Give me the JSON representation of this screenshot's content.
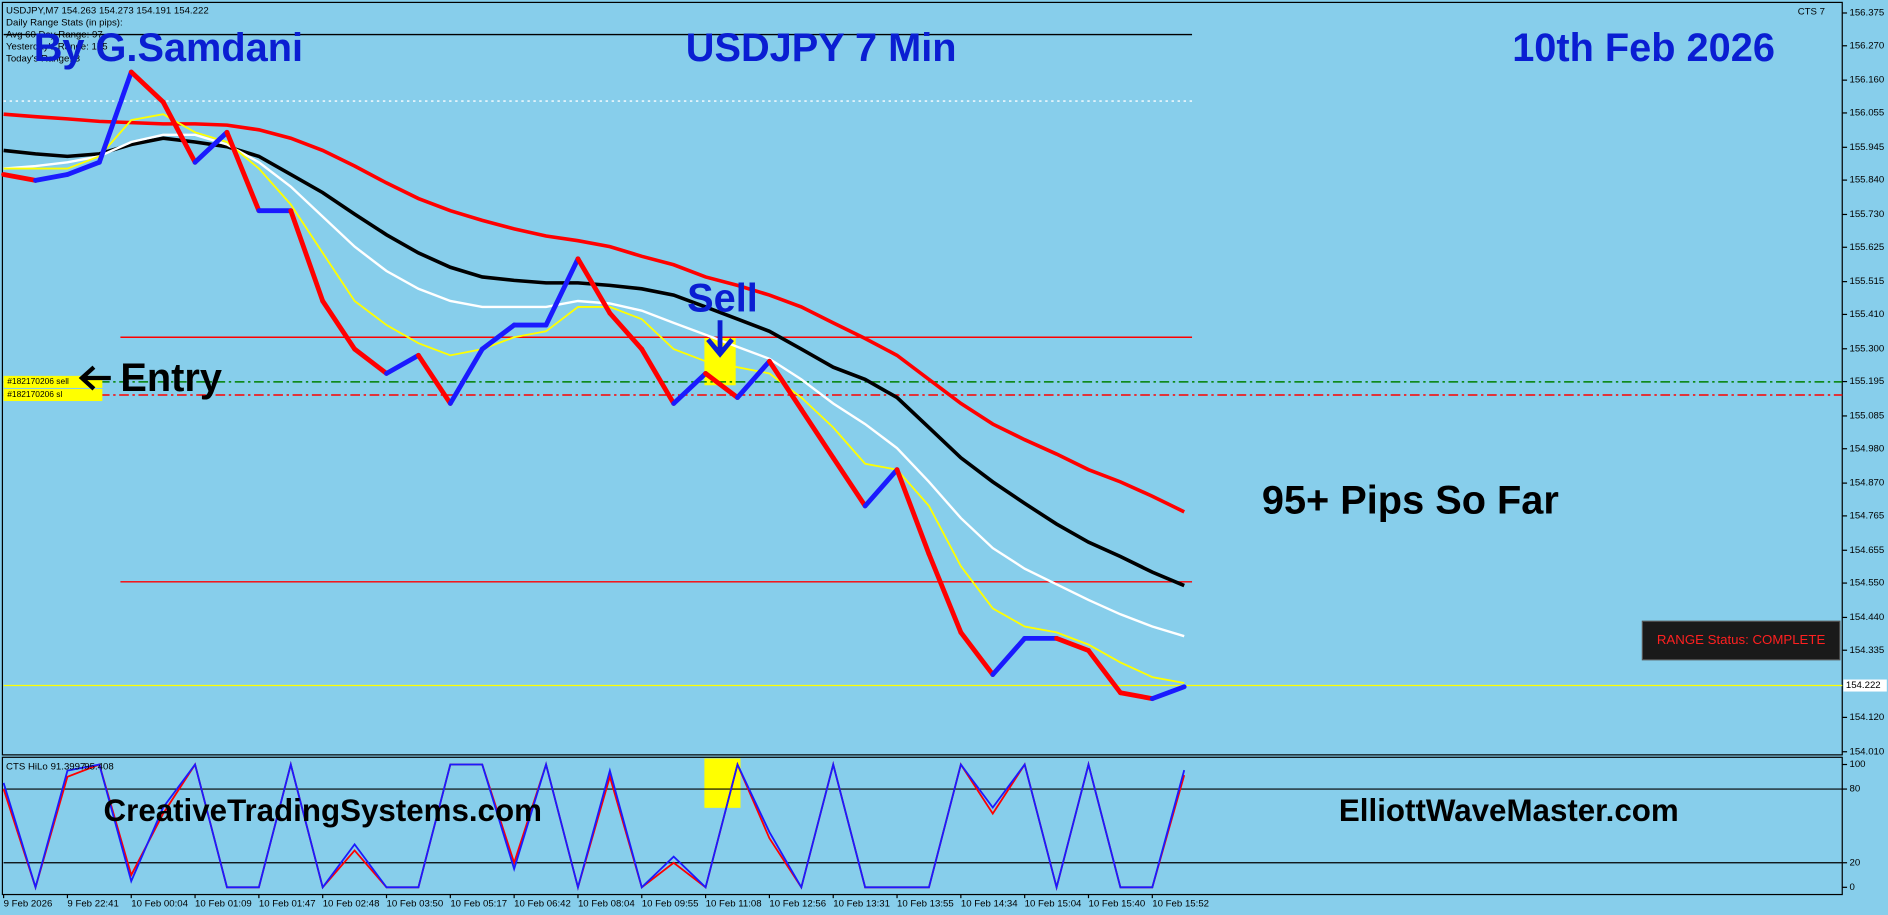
{
  "header": {
    "symbol_line": "USDJPY,M7  154.263 154.273 154.191 154.222",
    "stats_title": "Daily Range Stats (in pips):",
    "stats": [
      "Avg 60 Day Range: 97",
      "Yesterday's Range: 175",
      "Today's Range: 3"
    ],
    "indicator_tag": "CTS 7"
  },
  "annotations": {
    "author": "By G.Samdani",
    "date": "10th Feb 2026",
    "signal": "Sell",
    "entry": "Entry",
    "result": "95+ Pips So Far",
    "range_status": "RANGE Status: COMPLETE",
    "site_left": "CreativeTradingSystems.com",
    "site_right": "ElliottWaveMaster.com"
  },
  "chart_data": [
    {
      "type": "line",
      "title": "USDJPY 7 Min",
      "categories": [
        "9 Feb 2026",
        null,
        "9 Feb 22:41",
        null,
        "10 Feb 00:04",
        null,
        "10 Feb 01:09",
        null,
        "10 Feb 01:47",
        null,
        "10 Feb 02:48",
        null,
        "10 Feb 03:50",
        null,
        "10 Feb 05:17",
        null,
        "10 Feb 06:42",
        null,
        "10 Feb 08:04",
        null,
        "10 Feb 09:55",
        null,
        "10 Feb 11:08",
        null,
        "10 Feb 12:56",
        null,
        "10 Feb 13:31",
        null,
        "10 Feb 13:55",
        null,
        "10 Feb 14:34",
        null,
        "10 Feb 15:04",
        null,
        "10 Feb 15:40",
        null,
        "10 Feb 15:52",
        null
      ],
      "series": [
        {
          "color": "#ff0000",
          "width": 3,
          "values": [
            156.051,
            156.043,
            156.036,
            156.028,
            156.024,
            156.02,
            156.02,
            156.016,
            156.001,
            155.974,
            155.935,
            155.885,
            155.831,
            155.781,
            155.742,
            155.711,
            155.684,
            155.661,
            155.646,
            155.627,
            155.596,
            155.569,
            155.53,
            155.503,
            155.472,
            155.434,
            155.383,
            155.333,
            155.279,
            155.202,
            155.125,
            155.059,
            155.009,
            154.963,
            154.913,
            154.874,
            154.828,
            154.778
          ]
        },
        {
          "color": "#000000",
          "width": 3,
          "values": [
            155.935,
            155.924,
            155.916,
            155.924,
            155.954,
            155.974,
            155.962,
            155.947,
            155.916,
            155.858,
            155.8,
            155.731,
            155.665,
            155.607,
            155.561,
            155.53,
            155.519,
            155.511,
            155.511,
            155.503,
            155.492,
            155.472,
            155.434,
            155.395,
            155.356,
            155.299,
            155.241,
            155.202,
            155.144,
            155.048,
            154.951,
            154.874,
            154.805,
            154.739,
            154.681,
            154.635,
            154.585,
            154.542
          ]
        },
        {
          "color": "#ffffff",
          "width": 2,
          "values": [
            155.877,
            155.885,
            155.897,
            155.916,
            155.962,
            155.985,
            155.985,
            155.954,
            155.897,
            155.819,
            155.723,
            155.627,
            155.549,
            155.492,
            155.453,
            155.434,
            155.434,
            155.434,
            155.453,
            155.445,
            155.422,
            155.383,
            155.345,
            155.306,
            155.268,
            155.202,
            155.125,
            155.059,
            154.982,
            154.874,
            154.758,
            154.662,
            154.596,
            154.546,
            154.496,
            154.45,
            154.411,
            154.38
          ]
        },
        {
          "color": "#ffff00",
          "width": 1.5,
          "values": [
            155.877,
            155.877,
            155.877,
            155.916,
            156.032,
            156.051,
            155.993,
            155.962,
            155.877,
            155.762,
            155.607,
            155.453,
            155.376,
            155.318,
            155.279,
            155.299,
            155.337,
            155.356,
            155.434,
            155.434,
            155.395,
            155.299,
            155.26,
            155.241,
            155.221,
            155.144,
            155.048,
            154.932,
            154.913,
            154.797,
            154.604,
            154.469,
            154.411,
            154.392,
            154.353,
            154.296,
            154.249,
            154.23
          ]
        },
        {
          "up_color": "#1a1aff",
          "down_color": "#ff0000",
          "width": 4,
          "values": [
            155.858,
            155.839,
            155.858,
            155.897,
            156.186,
            156.09,
            155.897,
            155.993,
            155.742,
            155.742,
            155.453,
            155.299,
            155.221,
            155.279,
            155.125,
            155.299,
            155.376,
            155.376,
            155.588,
            155.414,
            155.299,
            155.125,
            155.221,
            155.144,
            155.26,
            155.106,
            154.951,
            154.797,
            154.913,
            154.643,
            154.392,
            154.257,
            154.373,
            154.373,
            154.334,
            154.199,
            154.18,
            154.218
          ]
        }
      ],
      "levels": [
        {
          "value": 156.306,
          "color": "#000000",
          "style": "solid"
        },
        {
          "value": 156.093,
          "color": "#ffffff",
          "style": "dotted"
        },
        {
          "value": 155.337,
          "color": "#ff0000",
          "style": "solid"
        },
        {
          "value": 155.194,
          "color": "#008000",
          "style": "dashdot",
          "label": "#182170206 sell"
        },
        {
          "value": 155.152,
          "color": "#ff0000",
          "style": "dashdot",
          "label": "#182170206 sl"
        },
        {
          "value": 154.554,
          "color": "#ff0000",
          "style": "solid"
        }
      ],
      "current_price": 154.222,
      "ylim": [
        154.0,
        156.405
      ],
      "yticks": [
        156.375,
        {
          "value": 156.27,
          "label": "156.270"
        },
        {
          "value": 156.16,
          "label": "156.160"
        },
        156.055,
        155.945,
        {
          "value": 155.84,
          "label": "155.840"
        },
        {
          "value": 155.73,
          "label": "155.730"
        },
        155.625,
        155.515,
        {
          "value": 155.41,
          "label": "155.410"
        },
        {
          "value": 155.3,
          "label": "155.300"
        },
        155.195,
        155.085,
        {
          "value": 154.98,
          "label": "154.980"
        },
        {
          "value": 154.87,
          "label": "154.870"
        },
        154.765,
        154.655,
        {
          "value": 154.55,
          "label": "154.550"
        },
        {
          "value": 154.44,
          "label": "154.440"
        },
        154.335,
        {
          "value": 154.12,
          "label": "154.120"
        },
        {
          "value": 154.01,
          "label": "154.010"
        }
      ]
    },
    {
      "type": "line",
      "title": "CTS HiLo",
      "series": [
        {
          "color": "#ff0000",
          "values": [
            80,
            0,
            90,
            100,
            10,
            60,
            100,
            0,
            0,
            100,
            0,
            30,
            0,
            0,
            100,
            100,
            20,
            100,
            0,
            90,
            0,
            20,
            0,
            100,
            40,
            0,
            100,
            0,
            0,
            0,
            100,
            60,
            100,
            0,
            100,
            0,
            0,
            91.3997
          ]
        },
        {
          "color": "#1a1aff",
          "values": [
            85,
            0,
            95,
            100,
            5,
            65,
            100,
            0,
            0,
            100,
            0,
            35,
            0,
            0,
            100,
            100,
            15,
            100,
            0,
            95,
            0,
            25,
            0,
            100,
            45,
            0,
            100,
            0,
            0,
            0,
            100,
            65,
            100,
            0,
            100,
            0,
            0,
            95.408
          ]
        }
      ],
      "levels": [
        80,
        20
      ],
      "ylim": [
        0,
        100
      ],
      "yticks": [
        100,
        80,
        20,
        0
      ]
    }
  ]
}
